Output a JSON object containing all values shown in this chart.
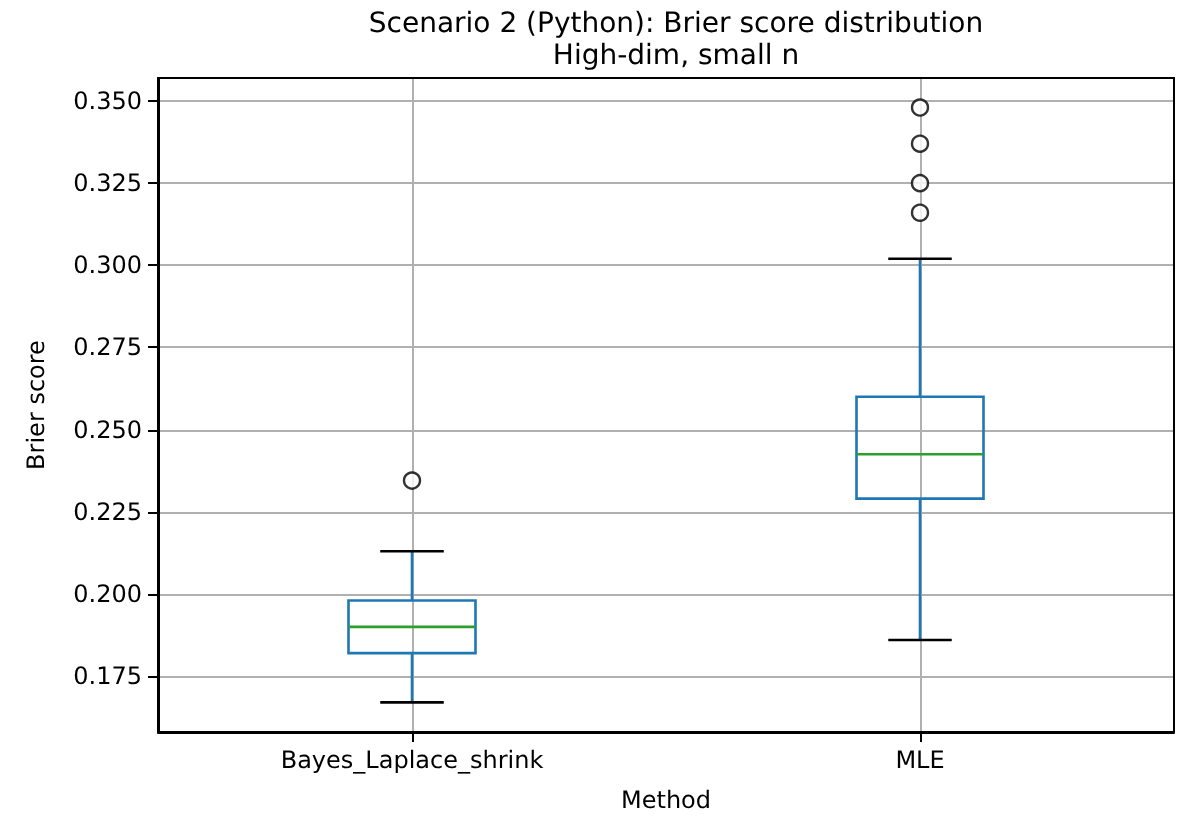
{
  "chart_data": {
    "type": "box",
    "title": "Scenario 2 (Python): Brier score distribution",
    "subtitle": "High-dim, small n",
    "xlabel": "Method",
    "ylabel": "Brier score",
    "categories": [
      "Bayes_Laplace_shrink",
      "MLE"
    ],
    "series": [
      {
        "color": "#1f77b4",
        "boxes": [
          {
            "low": 0.167,
            "q1": 0.182,
            "median": 0.19,
            "q3": 0.198,
            "high": 0.213,
            "outliers": [
              0.2345
            ]
          },
          {
            "low": 0.186,
            "q1": 0.229,
            "median": 0.2425,
            "q3": 0.26,
            "high": 0.302,
            "outliers": [
              0.316,
              0.325,
              0.337,
              0.348
            ]
          }
        ]
      }
    ],
    "ylim": [
      0.158,
      0.357
    ],
    "yticks": [
      0.175,
      {
        "value": 0.2,
        "label": "0.200"
      },
      0.225,
      {
        "value": 0.25,
        "label": "0.250"
      },
      0.275,
      {
        "value": 0.3,
        "label": "0.300"
      },
      0.325,
      {
        "value": 0.35,
        "label": "0.350"
      }
    ],
    "grid": true
  }
}
